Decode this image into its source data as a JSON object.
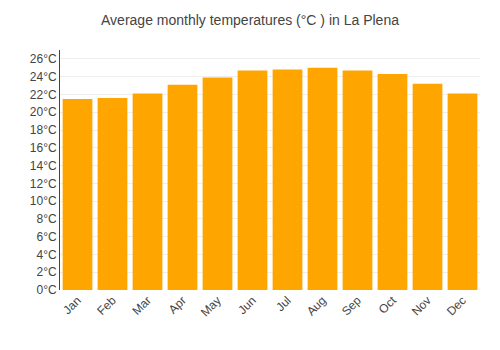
{
  "chart_data": {
    "type": "bar",
    "title": "Average monthly temperatures (°C ) in La Plena",
    "categories": [
      "Jan",
      "Feb",
      "Mar",
      "Apr",
      "May",
      "Jun",
      "Jul",
      "Aug",
      "Sep",
      "Oct",
      "Nov",
      "Dec"
    ],
    "values": [
      21.5,
      21.6,
      22.1,
      23.1,
      23.9,
      24.7,
      24.8,
      25.0,
      24.7,
      24.3,
      23.2,
      22.1
    ],
    "color": "#FFA500",
    "ylim": [
      0,
      27
    ],
    "yticks": [
      {
        "value": 0,
        "label": "0°C"
      },
      {
        "value": 2,
        "label": "2°C"
      },
      {
        "value": 4,
        "label": "4°C"
      },
      {
        "value": 6,
        "label": "6°C"
      },
      {
        "value": 8,
        "label": "8°C"
      },
      {
        "value": 10,
        "label": "10°C"
      },
      {
        "value": 12,
        "label": "12°C"
      },
      {
        "value": 14,
        "label": "14°C"
      },
      {
        "value": 16,
        "label": "16°C"
      },
      {
        "value": 18,
        "label": "18°C"
      },
      {
        "value": 20,
        "label": "20°C"
      },
      {
        "value": 22,
        "label": "22°C"
      },
      {
        "value": 24,
        "label": "24°C"
      },
      {
        "value": 26,
        "label": "26°C"
      }
    ],
    "grid": true
  }
}
